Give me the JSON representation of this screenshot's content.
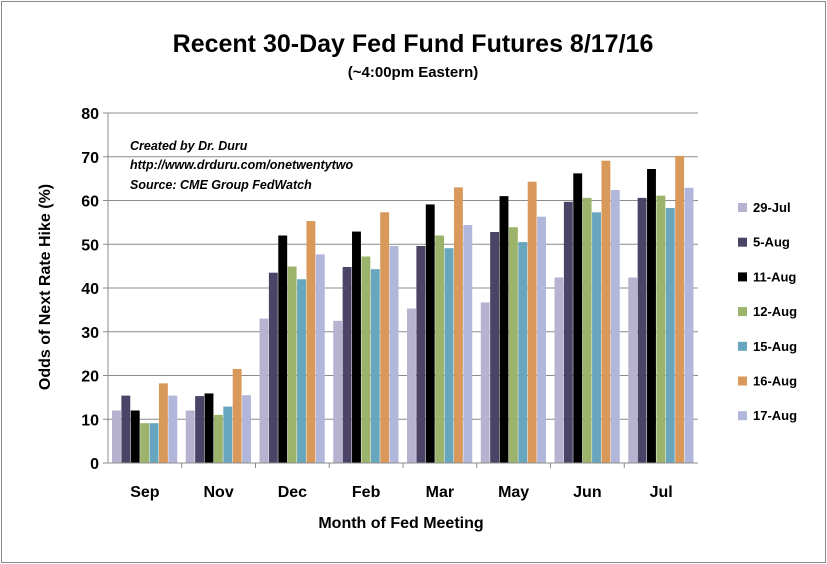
{
  "chart_data": {
    "type": "bar",
    "title": "Recent 30-Day Fed Fund Futures 8/17/16",
    "subtitle": "(~4:00pm Eastern)",
    "xlabel": "Month of Fed Meeting",
    "ylabel": "Odds of Next Rate Hike (%)",
    "ylim": [
      0,
      80
    ],
    "yticks": [
      "0",
      "10",
      "20",
      "30",
      "40",
      "50",
      "60",
      "70",
      "80"
    ],
    "grid": true,
    "legend_position": "right",
    "annotations": [
      "Created by Dr. Duru",
      "http://www.drduru.com/onetwentytwo",
      "Source: CME Group FedWatch"
    ],
    "categories": [
      "Sep",
      "Nov",
      "Dec",
      "Feb",
      "Mar",
      "May",
      "Jun",
      "Jul"
    ],
    "series": [
      {
        "name": "29-Jul",
        "color": "#b7b2cf",
        "values": [
          12,
          12,
          33,
          32.5,
          35.3,
          36.7,
          42.4,
          42.4
        ]
      },
      {
        "name": "5-Aug",
        "color": "#4c4466",
        "values": [
          15.4,
          15.3,
          43.5,
          44.8,
          49.6,
          52.8,
          59.7,
          60.6
        ]
      },
      {
        "name": "11-Aug",
        "color": "#000000",
        "values": [
          12,
          15.9,
          52,
          52.9,
          59.1,
          61,
          66.2,
          67.2
        ]
      },
      {
        "name": "12-Aug",
        "color": "#9bb36a",
        "values": [
          9.1,
          11,
          44.9,
          47.2,
          52,
          53.9,
          60.6,
          61.1
        ]
      },
      {
        "name": "15-Aug",
        "color": "#67a6bd",
        "values": [
          9.1,
          12.9,
          42,
          44.3,
          49.1,
          50.5,
          57.3,
          58.3
        ]
      },
      {
        "name": "16-Aug",
        "color": "#d8995a",
        "values": [
          18.2,
          21.5,
          55.3,
          57.3,
          63,
          64.3,
          69.1,
          70.2
        ]
      },
      {
        "name": "17-Aug",
        "color": "#b1b7da",
        "values": [
          15.4,
          15.5,
          47.7,
          49.6,
          54.4,
          56.3,
          62.4,
          62.9
        ]
      }
    ]
  }
}
